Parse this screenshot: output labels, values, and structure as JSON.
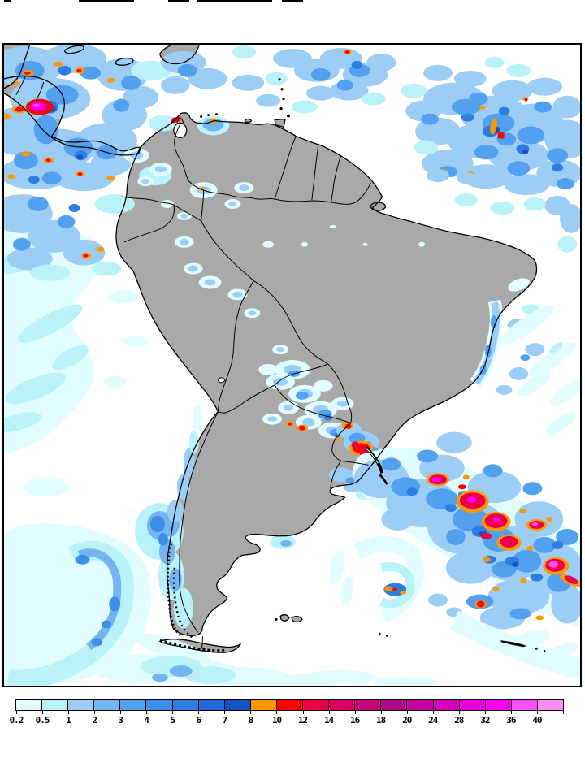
{
  "figure": {
    "title_marks": "clipped plot title fragments",
    "background_color": "#FFFFFF",
    "frame_color": "#000000",
    "map": {
      "land_color": "#A9A9A9",
      "ocean_color": "#FFFFFF",
      "outline_color": "#000000",
      "lake_color": "#FFFFFF",
      "region": "South America, Central America and surrounding oceans"
    },
    "legend": {
      "units": "precipitation shading scale",
      "labels": [
        "0.2",
        "0.5",
        "1",
        "2",
        "3",
        "4",
        "5",
        "6",
        "7",
        "8",
        "10",
        "12",
        "14",
        "16",
        "18",
        "20",
        "24",
        "28",
        "32",
        "36",
        "40"
      ],
      "colors": [
        "#E2FDFF",
        "#B9F2F8",
        "#9CCEF5",
        "#74B4F0",
        "#52A1F0",
        "#3D8EE9",
        "#2F7DE0",
        "#2268D8",
        "#1550C4",
        "#FF9800",
        "#FA0200",
        "#E80048",
        "#D80060",
        "#C40878",
        "#B00888",
        "#C200A0",
        "#D400BE",
        "#E800DC",
        "#F900F2",
        "#FF4FF8",
        "#FF8CFA"
      ]
    }
  }
}
